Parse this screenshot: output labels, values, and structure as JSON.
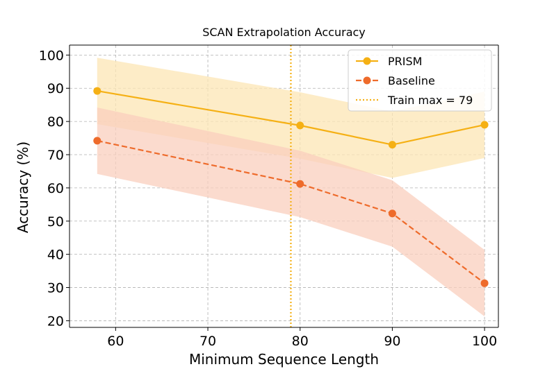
{
  "chart_data": {
    "type": "line",
    "title": "SCAN Extrapolation Accuracy",
    "xlabel": "Minimum Sequence Length",
    "ylabel": "Accuracy (%)",
    "x": [
      58,
      80,
      90,
      100
    ],
    "xlim": [
      55,
      101.5
    ],
    "ylim": [
      18,
      103
    ],
    "xticks": [
      60,
      70,
      80,
      90,
      100
    ],
    "yticks": [
      20,
      30,
      40,
      50,
      60,
      70,
      80,
      90,
      100
    ],
    "grid": true,
    "legend_position": "top-right",
    "series": [
      {
        "name": "PRISM",
        "values": [
          89.2,
          78.8,
          73.0,
          79.0
        ],
        "band_lower": [
          79.2,
          68.8,
          63.0,
          69.0
        ],
        "band_upper": [
          99.2,
          88.8,
          83.0,
          89.0
        ],
        "color": "#F5B014",
        "band_color": "#FCE6B4",
        "linestyle": "solid",
        "marker": "circle"
      },
      {
        "name": "Baseline",
        "values": [
          74.2,
          61.2,
          52.3,
          31.3
        ],
        "band_lower": [
          64.2,
          51.2,
          42.3,
          21.3
        ],
        "band_upper": [
          84.2,
          71.2,
          62.3,
          41.3
        ],
        "color": "#EE6B2B",
        "band_color": "#F9CFBD",
        "linestyle": "dashed",
        "marker": "circle"
      }
    ],
    "reference_lines": [
      {
        "name": "Train max = 79",
        "x": 79,
        "color": "#F5B014",
        "linestyle": "dotted"
      }
    ]
  }
}
